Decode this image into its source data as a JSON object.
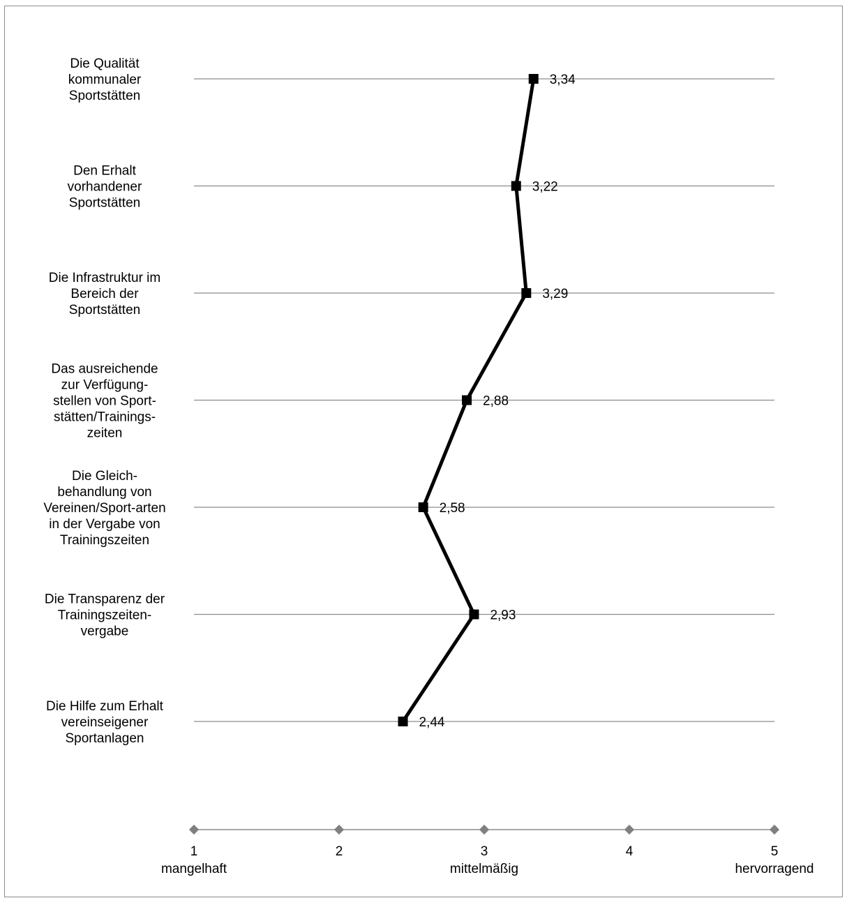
{
  "chart_data": {
    "type": "line",
    "categories": [
      [
        "Die Qualität",
        "kommunaler",
        "Sportstätten"
      ],
      [
        "Den Erhalt",
        "vorhandener",
        "Sportstätten"
      ],
      [
        "Die Infrastruktur im",
        "Bereich der",
        "Sportstätten"
      ],
      [
        "Das ausreichende",
        "zur Verfügung-",
        "stellen von Sport-",
        "stätten/Trainings-",
        "zeiten"
      ],
      [
        "Die Gleich-",
        "behandlung von",
        "Vereinen/Sport-arten",
        "in der Vergabe von",
        "Trainingszeiten"
      ],
      [
        "Die Transparenz der",
        "Trainingszeiten-",
        "vergabe"
      ],
      [
        "Die Hilfe zum Erhalt",
        "vereinseigener",
        "Sportanlagen"
      ]
    ],
    "values": [
      3.34,
      3.22,
      3.29,
      2.88,
      2.58,
      2.93,
      2.44
    ],
    "value_labels": [
      "3,34",
      "3,22",
      "3,29",
      "2,88",
      "2,58",
      "2,93",
      "2,44"
    ],
    "scale": {
      "xlim": [
        1,
        5
      ],
      "ticks": [
        {
          "value": 1,
          "number": "1",
          "label": "mangelhaft"
        },
        {
          "value": 2,
          "number": "2",
          "label": ""
        },
        {
          "value": 3,
          "number": "3",
          "label": "mittelmäßig"
        },
        {
          "value": 4,
          "number": "4",
          "label": ""
        },
        {
          "value": 5,
          "number": "5",
          "label": "hervorragend"
        }
      ]
    },
    "title": "",
    "xlabel": "",
    "ylabel": "",
    "grid": true,
    "colors": {
      "line": "#000000",
      "marker": "#000000",
      "grid": "#8c8c8c",
      "axis": "#8c8c8c",
      "axis_marker": "#7f7f7f"
    }
  }
}
